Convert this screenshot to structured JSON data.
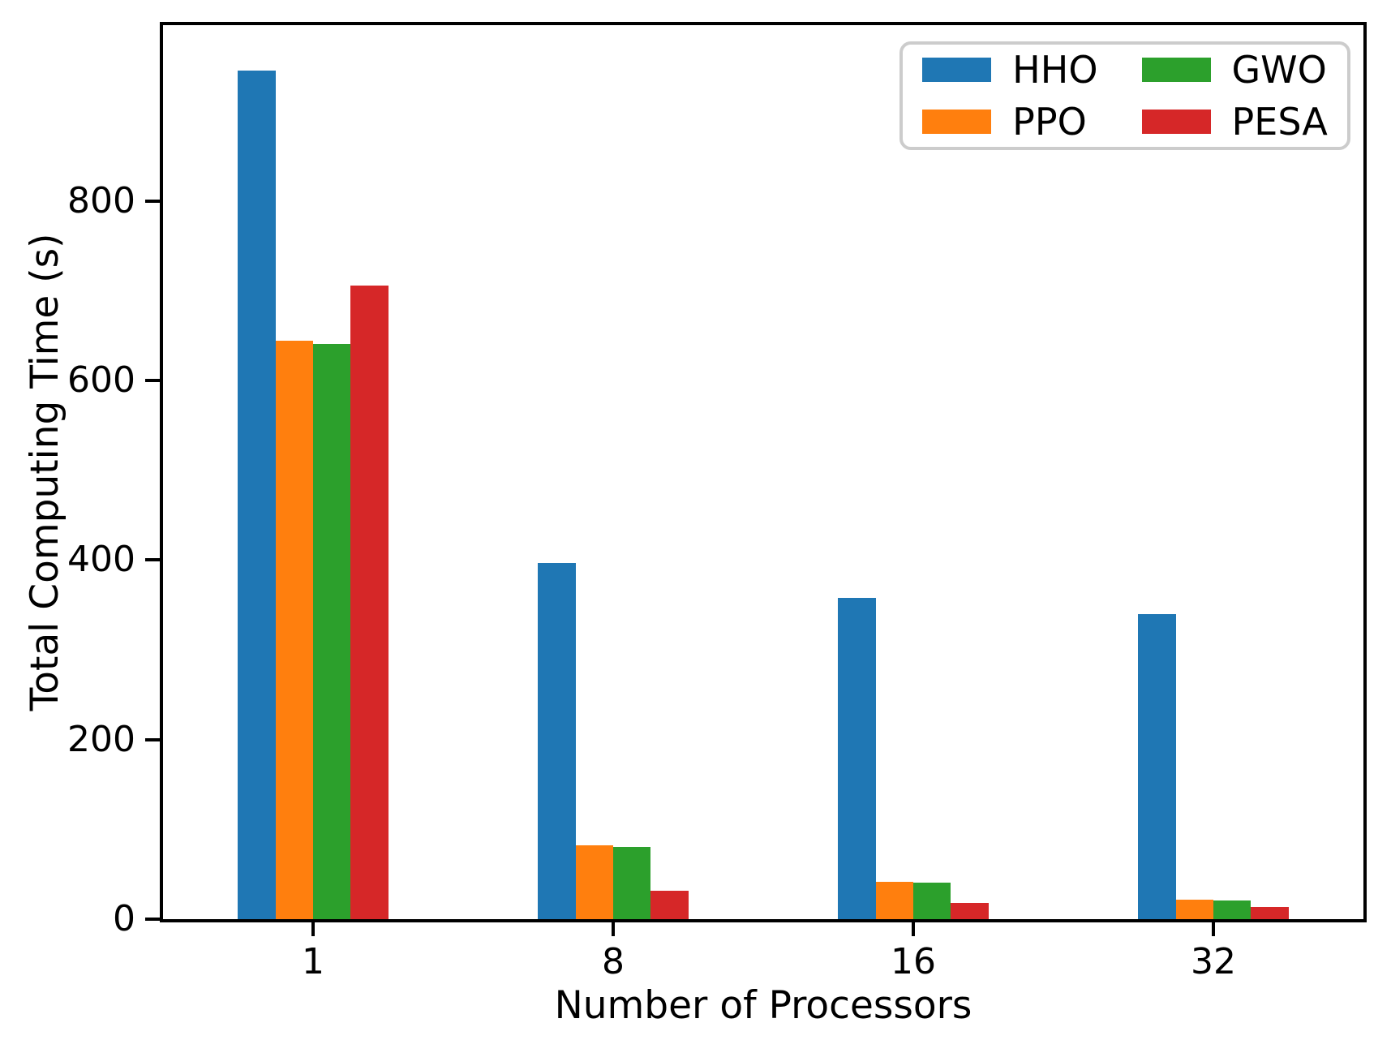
{
  "chart_data": {
    "type": "bar",
    "title": "",
    "xlabel": "Number of Processors",
    "ylabel": "Total Computing Time (s)",
    "categories": [
      "1",
      "8",
      "16",
      "32"
    ],
    "series": [
      {
        "name": "HHO",
        "color": "#1f77b4",
        "values": [
          945,
          397,
          358,
          340
        ]
      },
      {
        "name": "PPO",
        "color": "#ff7f0e",
        "values": [
          644,
          82,
          42,
          22
        ]
      },
      {
        "name": "GWO",
        "color": "#2ca02c",
        "values": [
          641,
          80,
          41,
          21
        ]
      },
      {
        "name": "PESA",
        "color": "#d62728",
        "values": [
          706,
          32,
          18,
          14
        ]
      }
    ],
    "yticks": [
      0,
      200,
      400,
      600,
      800
    ],
    "ylim": [
      0,
      996
    ],
    "grid": false,
    "legend_position": "upper-right-inside",
    "legend_ncol": 2,
    "legend_display_order": [
      "HHO",
      "GWO",
      "PPO",
      "PESA"
    ],
    "axis_color": "#000000",
    "background_color": "#ffffff"
  }
}
